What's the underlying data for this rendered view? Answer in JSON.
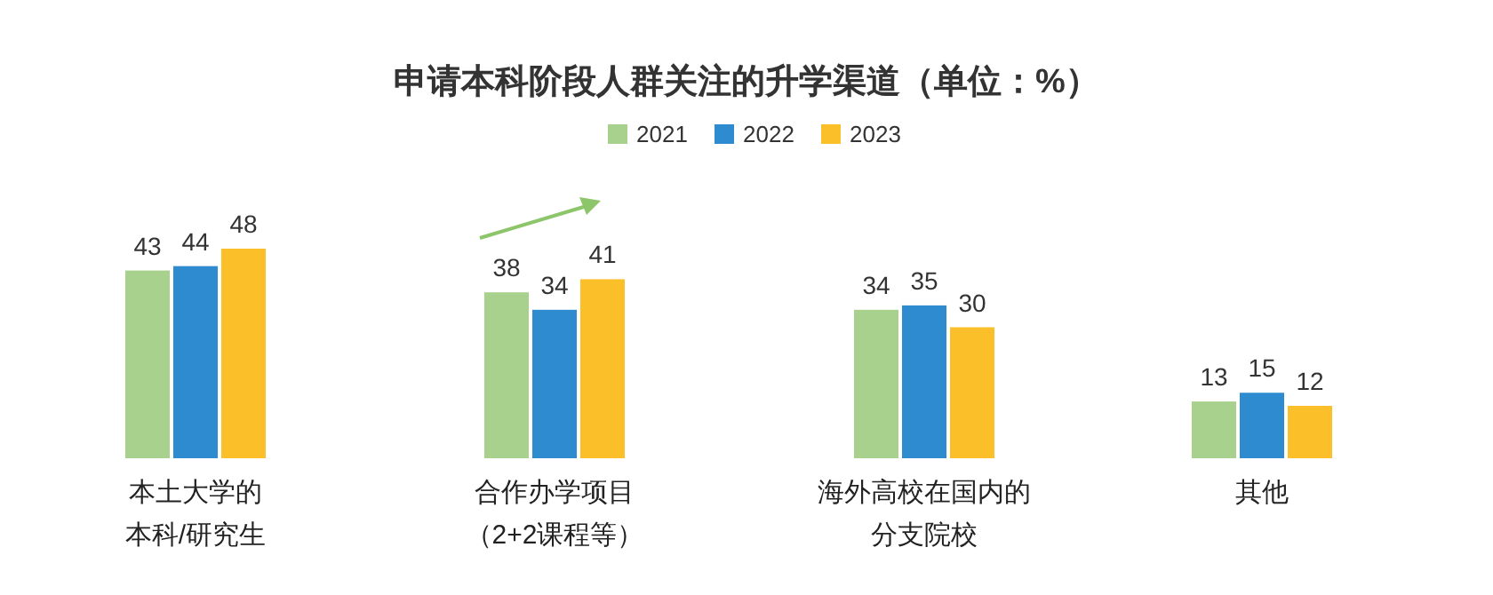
{
  "chart_data": {
    "type": "bar",
    "title": "申请本科阶段人群关注的升学渠道（单位：%）",
    "categories": [
      "本土大学的本科/研究生",
      "合作办学项目（2+2课程等）",
      "海外高校在国内的分支院校",
      "其他"
    ],
    "series": [
      {
        "name": "2021",
        "color": "#a9d18e",
        "values": [
          43,
          38,
          34,
          13
        ]
      },
      {
        "name": "2022",
        "color": "#2e8bd0",
        "values": [
          44,
          34,
          35,
          15
        ]
      },
      {
        "name": "2023",
        "color": "#fbbf2a",
        "values": [
          48,
          41,
          30,
          12
        ]
      }
    ],
    "data_labels": true,
    "legend": "top",
    "grid": false
  }
}
